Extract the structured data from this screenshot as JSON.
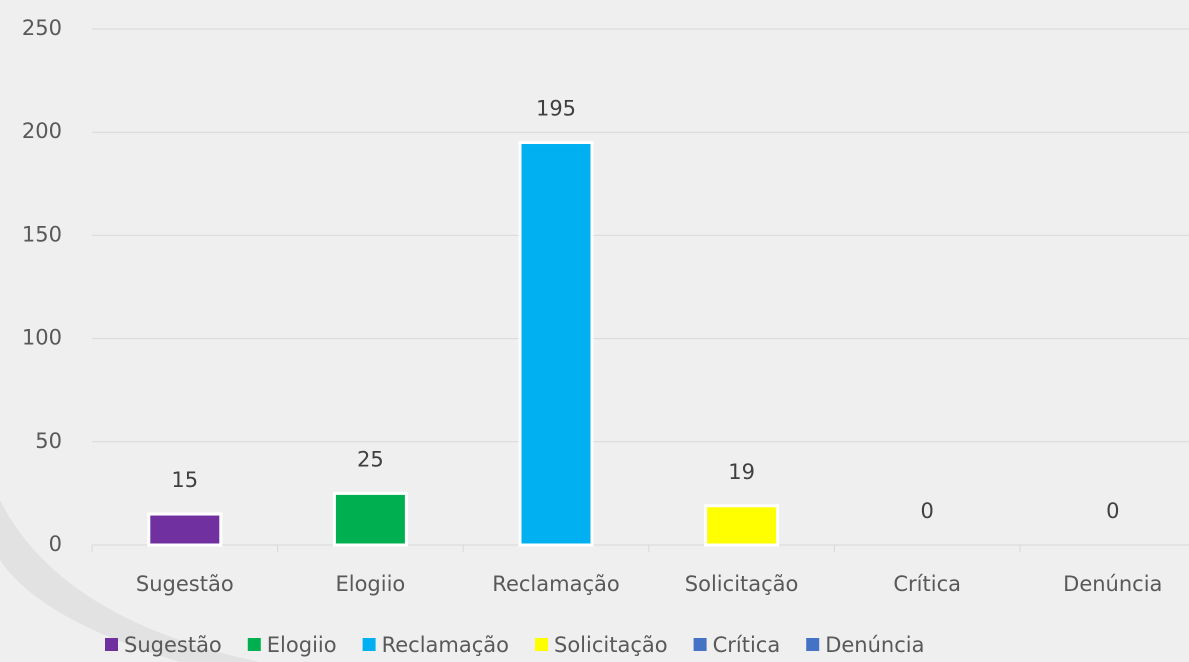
{
  "chart_data": {
    "type": "bar",
    "categories": [
      "Sugestão",
      "Elogiio",
      "Reclamação",
      "Solicitação",
      "Crítica",
      "Denúncia"
    ],
    "values": [
      15,
      25,
      195,
      19,
      0,
      0
    ],
    "colors": [
      "#7030a0",
      "#00b050",
      "#00b0f0",
      "#ffff00",
      "#4472c4",
      "#4472c4"
    ],
    "ylim": [
      0,
      250
    ],
    "yticks": [
      0,
      50,
      100,
      150,
      200,
      250
    ],
    "grid": true,
    "legend": "bottom"
  }
}
